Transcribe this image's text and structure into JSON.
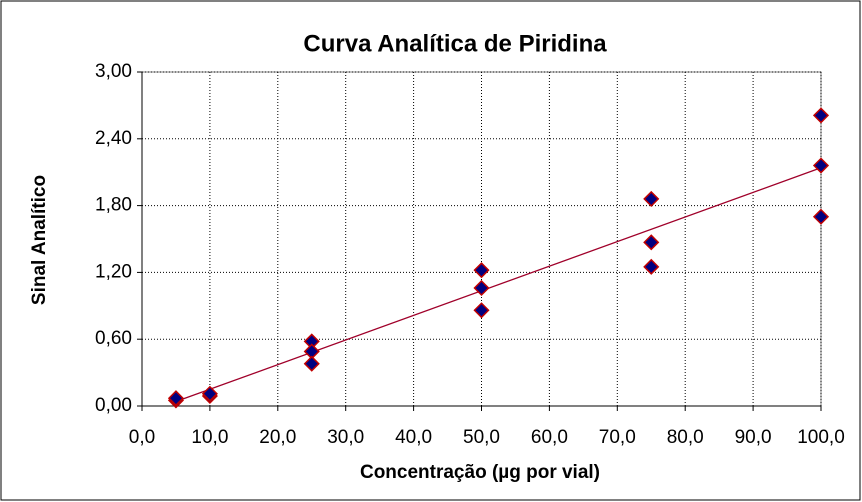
{
  "chart_data": {
    "type": "scatter",
    "title": "Curva Analítica de Piridina",
    "x_label": "Concentração (µg por vial)",
    "y_label": "Sinal Analítico",
    "x": [
      5,
      5,
      10,
      10,
      25,
      25,
      25,
      50,
      50,
      50,
      75,
      75,
      75,
      100,
      100,
      100
    ],
    "values": [
      0.05,
      0.07,
      0.09,
      0.11,
      0.58,
      0.49,
      0.38,
      1.22,
      1.06,
      0.86,
      1.86,
      1.47,
      1.25,
      2.61,
      2.16,
      1.7
    ],
    "color": "#000080",
    "edge_color": "#c00000",
    "trendline": {
      "x": [
        5,
        100
      ],
      "values": [
        0.04,
        2.14
      ],
      "color": "#a0002a"
    },
    "xlim": [
      0,
      100
    ],
    "xticks": [
      {
        "value": 0,
        "label": "0,0"
      },
      {
        "value": 10,
        "label": "10,0"
      },
      {
        "value": 20,
        "label": "20,0"
      },
      {
        "value": 30,
        "label": "30,0"
      },
      {
        "value": 40,
        "label": "40,0"
      },
      {
        "value": 50,
        "label": "50,0"
      },
      {
        "value": 60,
        "label": "60,0"
      },
      {
        "value": 70,
        "label": "70,0"
      },
      {
        "value": 80,
        "label": "80,0"
      },
      {
        "value": 90,
        "label": "90,0"
      },
      {
        "value": 100,
        "label": "100,0"
      }
    ],
    "ylim": [
      0,
      3
    ],
    "yticks": [
      {
        "value": 0,
        "label": "0,00"
      },
      {
        "value": 0.6,
        "label": "0,60"
      },
      {
        "value": 1.2,
        "label": "1,20"
      },
      {
        "value": 1.8,
        "label": "1,80"
      },
      {
        "value": 2.4,
        "label": "2,40"
      },
      {
        "value": 3,
        "label": "3,00"
      }
    ],
    "grid": true
  }
}
